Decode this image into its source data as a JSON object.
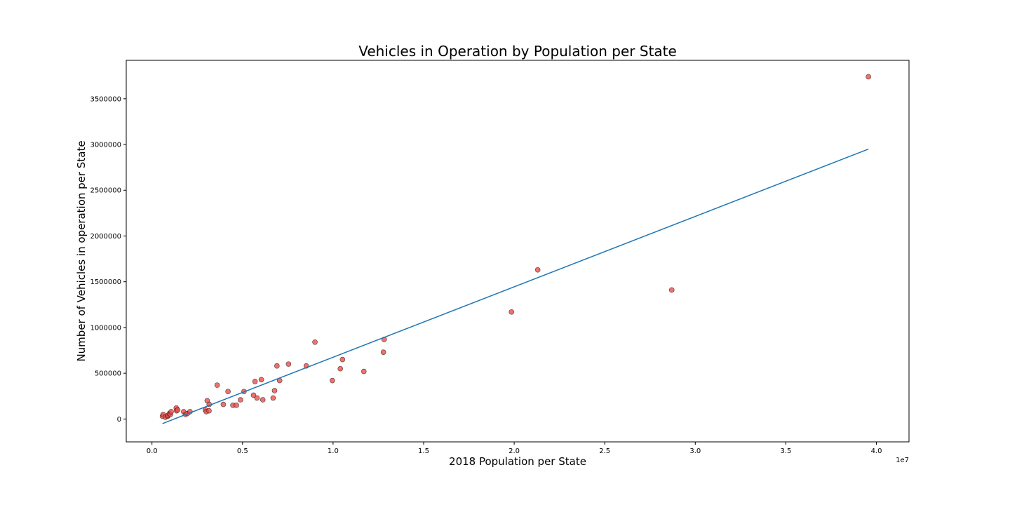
{
  "chart_data": {
    "type": "scatter",
    "title": "Vehicles in Operation by Population per State",
    "xlabel": "2018 Population per State",
    "ylabel": "Number of Vehicles in operation per State",
    "x_offset_label": "1e7",
    "xlim": [
      -1420000,
      41800000
    ],
    "ylim": [
      -250000,
      3920000
    ],
    "x_ticks": [
      0,
      5000000,
      10000000,
      15000000,
      20000000,
      25000000,
      30000000,
      35000000,
      40000000
    ],
    "x_tick_labels": [
      "0.0",
      "0.5",
      "1.0",
      "1.5",
      "2.0",
      "2.5",
      "3.0",
      "3.5",
      "4.0"
    ],
    "y_ticks": [
      0,
      500000,
      1000000,
      1500000,
      2000000,
      2500000,
      3000000,
      3500000
    ],
    "y_tick_labels": [
      "0",
      "500000",
      "1000000",
      "1500000",
      "2000000",
      "2500000",
      "3000000",
      "3500000"
    ],
    "grid": false,
    "points": {
      "color": "#e8504a",
      "edge_color": "#000000",
      "x": [
        580000,
        620000,
        740000,
        870000,
        890000,
        960000,
        1020000,
        1060000,
        1340000,
        1360000,
        1420000,
        1750000,
        1850000,
        1950000,
        2100000,
        2950000,
        3000000,
        3050000,
        3150000,
        3160000,
        3600000,
        3940000,
        4200000,
        4470000,
        4660000,
        4890000,
        5080000,
        5610000,
        5690000,
        5800000,
        6040000,
        6120000,
        6690000,
        6770000,
        6900000,
        7050000,
        7540000,
        8520000,
        9000000,
        9960000,
        10400000,
        10520000,
        11700000,
        12780000,
        12820000,
        19850000,
        21300000,
        28700000,
        39560000
      ],
      "y": [
        30000,
        50000,
        20000,
        30000,
        40000,
        60000,
        50000,
        80000,
        120000,
        90000,
        100000,
        80000,
        50000,
        60000,
        80000,
        100000,
        80000,
        200000,
        90000,
        160000,
        370000,
        160000,
        300000,
        150000,
        150000,
        210000,
        300000,
        260000,
        410000,
        230000,
        430000,
        210000,
        230000,
        310000,
        580000,
        420000,
        600000,
        580000,
        840000,
        420000,
        550000,
        650000,
        520000,
        730000,
        870000,
        1170000,
        1630000,
        1410000,
        3740000
      ]
    },
    "fit_line": {
      "color": "#1f77b4",
      "x": [
        580000,
        39560000
      ],
      "y": [
        -50000,
        2950000
      ]
    }
  }
}
